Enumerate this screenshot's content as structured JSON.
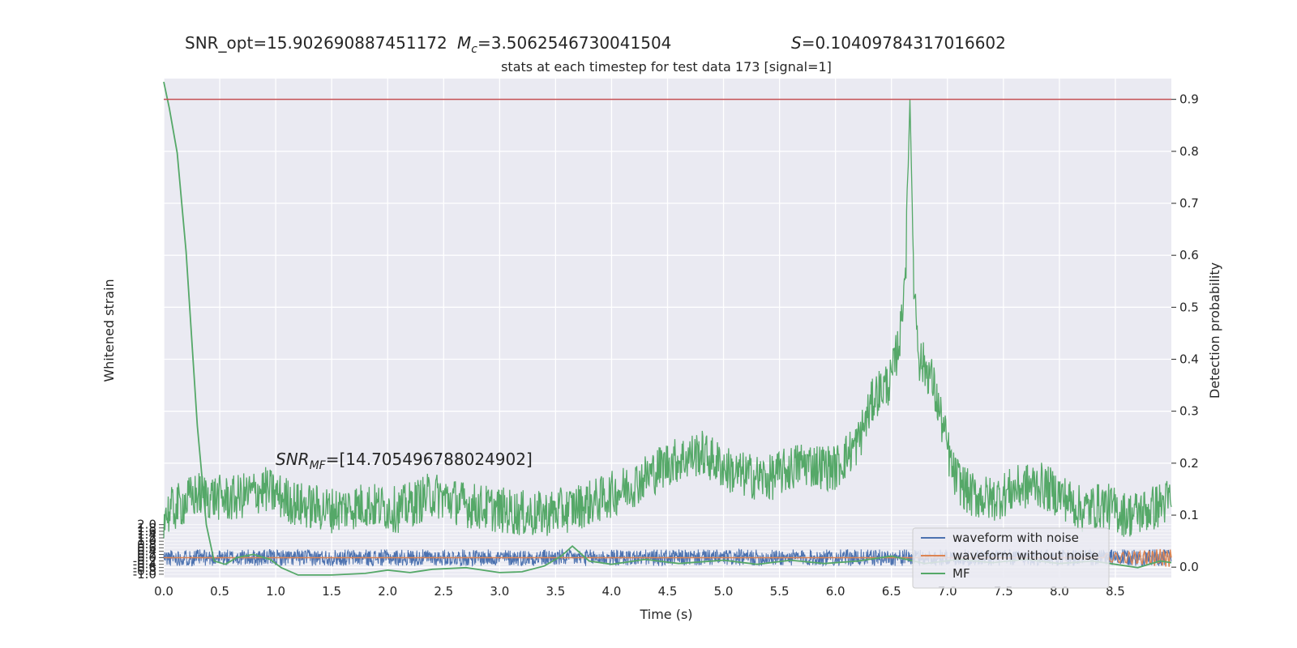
{
  "chart_data": {
    "type": "line",
    "header": {
      "snr_opt": "SNR_opt=15.902690887451172",
      "mc_symbol": "M",
      "mc_sub": "c",
      "mc_value": "=3.5062546730041504",
      "s_symbol": "S",
      "s_value": "=0.10409784317016602"
    },
    "title": "stats at each timestep for test data 173 [signal=1]",
    "annotation": {
      "prefix": "SNR",
      "sub": "MF",
      "value": "=[14.705496788024902]"
    },
    "xlabel": "Time (s)",
    "ylabel_left": "Whitened strain",
    "ylabel_right": "Detection probability",
    "xlim": [
      0,
      9
    ],
    "xticks": [
      "0.0",
      "0.5",
      "1.0",
      "1.5",
      "2.0",
      "2.5",
      "3.0",
      "3.5",
      "4.0",
      "4.5",
      "5.0",
      "5.5",
      "6.0",
      "6.5",
      "7.0",
      "7.5",
      "8.0",
      "8.5"
    ],
    "ylim_right": [
      -0.02,
      0.94
    ],
    "yticks_right": [
      "0.0",
      "0.1",
      "0.2",
      "0.3",
      "0.4",
      "0.5",
      "0.6",
      "0.7",
      "0.8",
      "0.9"
    ],
    "ylim_left": [
      -1.2,
      29
    ],
    "yticks_left": [
      "2.0",
      "1.8",
      "1.6",
      "1.4",
      "1.2",
      "1.0",
      "0.8",
      "0.6",
      "0.4",
      "0.2",
      "0.0",
      "-0.2",
      "-0.4",
      "-0.6",
      "-0.8",
      "-1.0"
    ],
    "threshold": 0.9,
    "legend": {
      "placement": "lower-right"
    },
    "grid": true,
    "colors": {
      "waveform_with_noise": "#4c72b0",
      "waveform_without_noise": "#dd8452",
      "mf": "#55a868",
      "prob": "#55a868",
      "threshold": "#c44e52",
      "background": "#eaeaf2"
    },
    "series": [
      {
        "name": "waveform with noise",
        "axis": "left",
        "amplitude": 0.5
      },
      {
        "name": "waveform without noise",
        "axis": "left",
        "onset": 8.4,
        "amplitude": 0.6
      },
      {
        "name": "MF",
        "axis": "left",
        "x": [
          0,
          0.05,
          0.12,
          0.2,
          0.3,
          0.38,
          0.45,
          0.55,
          0.65,
          0.8,
          0.95,
          1.05,
          1.2,
          1.5,
          1.8,
          2.0,
          2.2,
          2.4,
          2.7,
          3.0,
          3.2,
          3.4,
          3.55,
          3.65,
          3.8,
          4.0,
          4.3,
          4.6,
          5.0,
          5.3,
          5.6,
          5.9,
          6.2,
          6.5,
          6.8,
          7.1,
          7.4,
          7.7,
          8.0,
          8.3,
          8.5,
          8.7,
          8.9,
          9.0
        ],
        "y": [
          28.8,
          27.2,
          24.5,
          18.5,
          8.0,
          2.0,
          -0.2,
          -0.4,
          0.0,
          0.2,
          -0.1,
          -0.6,
          -1.05,
          -1.05,
          -0.95,
          -0.75,
          -0.9,
          -0.7,
          -0.6,
          -0.9,
          -0.85,
          -0.5,
          0.1,
          0.7,
          -0.2,
          -0.4,
          -0.1,
          -0.35,
          -0.15,
          -0.4,
          -0.15,
          -0.35,
          -0.2,
          0.1,
          -0.35,
          -0.1,
          -0.3,
          -0.1,
          -0.35,
          -0.2,
          -0.4,
          -0.6,
          -0.2,
          -0.3
        ]
      },
      {
        "name": "Detection probability",
        "axis": "right",
        "x": [
          0,
          0.3,
          0.6,
          0.9,
          1.2,
          1.5,
          1.8,
          2.1,
          2.4,
          2.7,
          3.0,
          3.3,
          3.6,
          3.9,
          4.2,
          4.5,
          4.8,
          5.1,
          5.4,
          5.7,
          6.0,
          6.2,
          6.35,
          6.5,
          6.58,
          6.63,
          6.665,
          6.7,
          6.75,
          6.85,
          6.95,
          7.05,
          7.2,
          7.4,
          7.6,
          7.8,
          8.0,
          8.2,
          8.4,
          8.6,
          8.8,
          9.0
        ],
        "y": [
          0.1,
          0.14,
          0.13,
          0.15,
          0.12,
          0.11,
          0.12,
          0.11,
          0.14,
          0.12,
          0.11,
          0.1,
          0.11,
          0.13,
          0.16,
          0.2,
          0.22,
          0.18,
          0.17,
          0.2,
          0.19,
          0.24,
          0.33,
          0.36,
          0.45,
          0.6,
          0.9,
          0.55,
          0.4,
          0.37,
          0.28,
          0.18,
          0.14,
          0.13,
          0.15,
          0.16,
          0.14,
          0.11,
          0.12,
          0.1,
          0.11,
          0.13
        ]
      }
    ]
  }
}
